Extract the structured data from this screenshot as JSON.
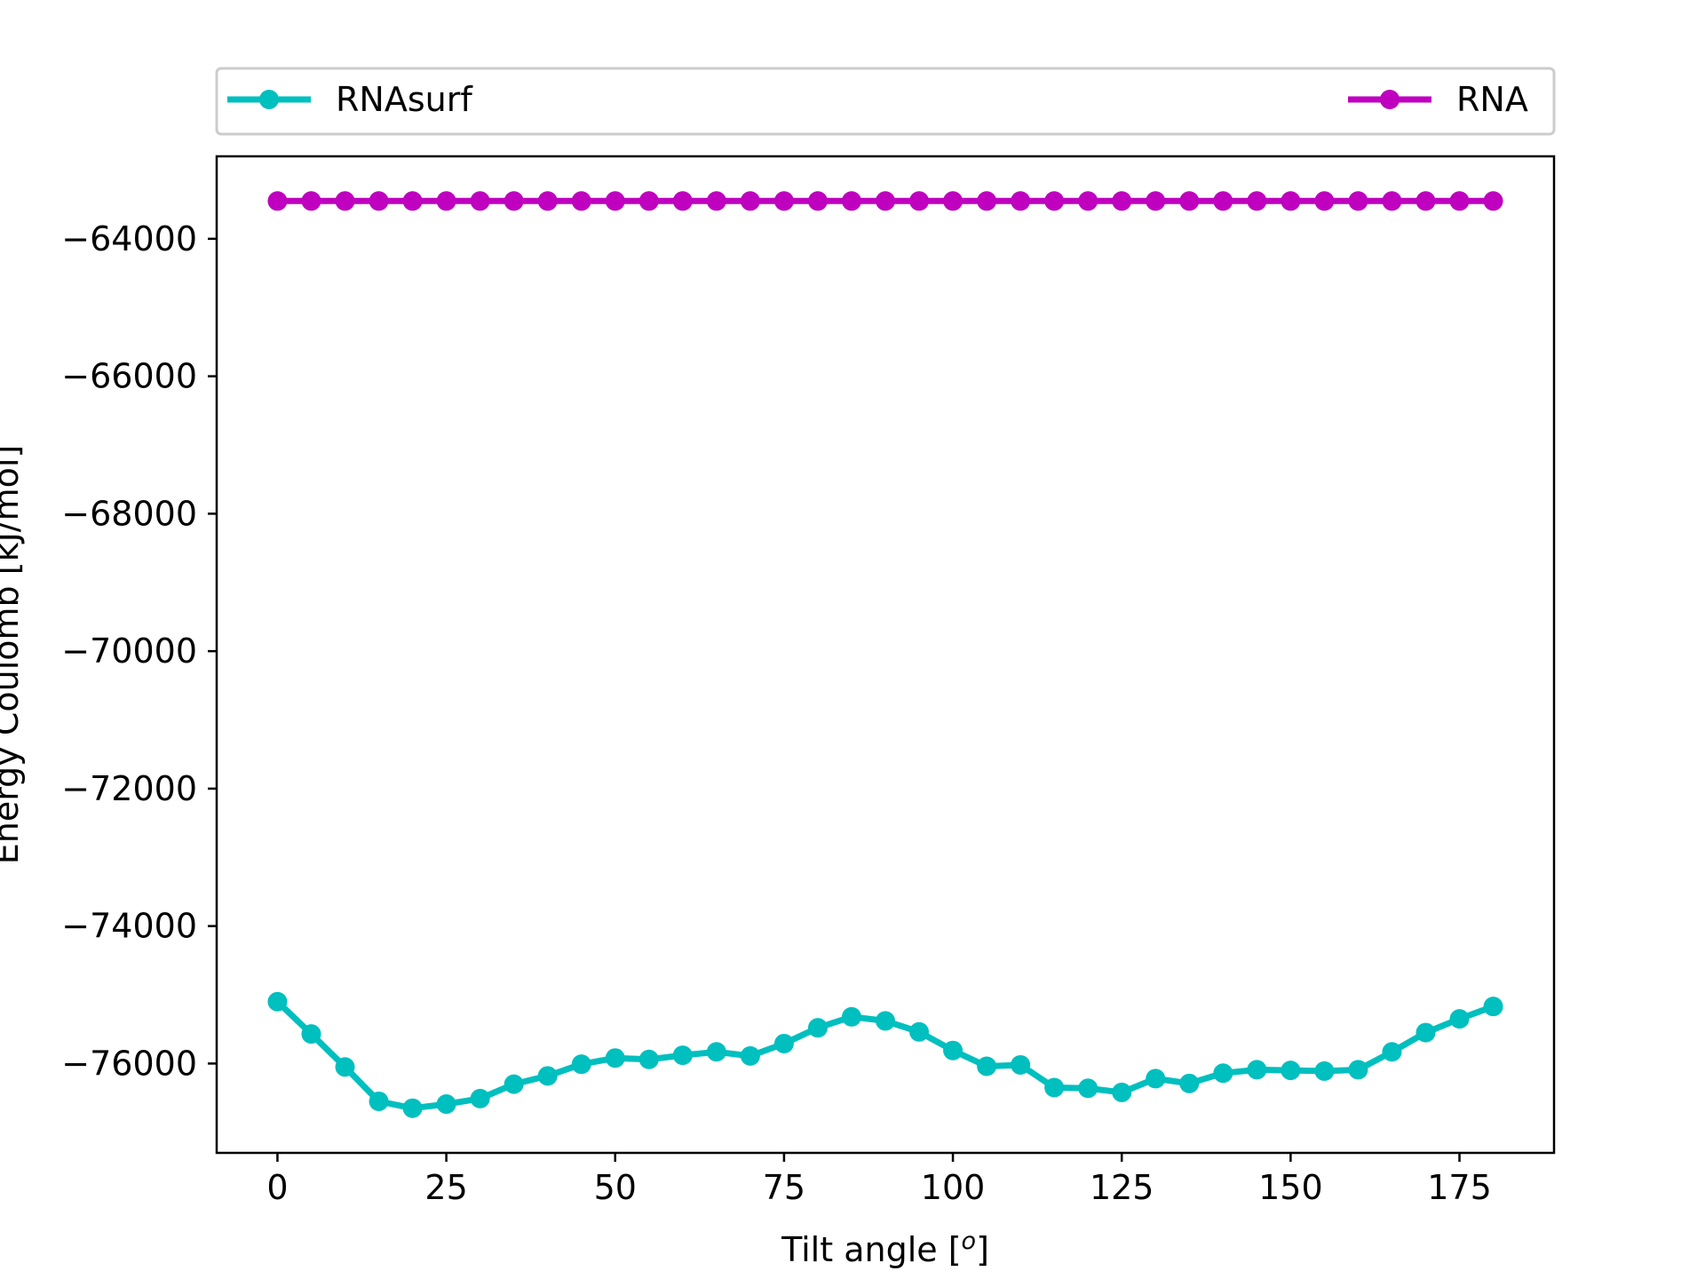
{
  "chart_data": {
    "type": "line",
    "xlabel": "Tilt angle [",
    "xlabel_sup": "o",
    "xlabel_end": "]",
    "ylabel": "Energy Coulomb [kJ/mol]",
    "xlim": [
      -9,
      189
    ],
    "ylim": [
      -77300,
      -62800
    ],
    "xticks": [
      0,
      25,
      50,
      75,
      100,
      125,
      150,
      175
    ],
    "xtick_labels": [
      "0",
      "25",
      "50",
      "75",
      "100",
      "125",
      "150",
      "175"
    ],
    "yticks": [
      -64000,
      -66000,
      -68000,
      -70000,
      -72000,
      -74000,
      -76000
    ],
    "ytick_labels": [
      "−64000",
      "−66000",
      "−68000",
      "−70000",
      "−72000",
      "−74000",
      "−76000"
    ],
    "legend": {
      "placement": "top, above plot, horizontal"
    },
    "x": [
      0,
      5,
      10,
      15,
      20,
      25,
      30,
      35,
      40,
      45,
      50,
      55,
      60,
      65,
      70,
      75,
      80,
      85,
      90,
      95,
      100,
      105,
      110,
      115,
      120,
      125,
      130,
      135,
      140,
      145,
      150,
      155,
      160,
      165,
      170,
      175,
      180
    ],
    "series": [
      {
        "name": "RNAsurf",
        "color": "#00bfbf",
        "values": [
          -75100,
          -75570,
          -76050,
          -76550,
          -76650,
          -76590,
          -76510,
          -76300,
          -76180,
          -76010,
          -75920,
          -75940,
          -75880,
          -75830,
          -75890,
          -75710,
          -75480,
          -75320,
          -75380,
          -75540,
          -75810,
          -76040,
          -76020,
          -76350,
          -76360,
          -76420,
          -76220,
          -76290,
          -76140,
          -76090,
          -76100,
          -76110,
          -76090,
          -75830,
          -75550,
          -75350,
          -75170
        ]
      },
      {
        "name": "RNA",
        "color": "#bf00bf",
        "values": [
          -63450,
          -63450,
          -63450,
          -63450,
          -63450,
          -63450,
          -63450,
          -63450,
          -63450,
          -63450,
          -63450,
          -63450,
          -63450,
          -63450,
          -63450,
          -63450,
          -63450,
          -63450,
          -63450,
          -63450,
          -63450,
          -63450,
          -63450,
          -63450,
          -63450,
          -63450,
          -63450,
          -63450,
          -63450,
          -63450,
          -63450,
          -63450,
          -63450,
          -63450,
          -63450,
          -63450,
          -63450
        ]
      }
    ]
  }
}
